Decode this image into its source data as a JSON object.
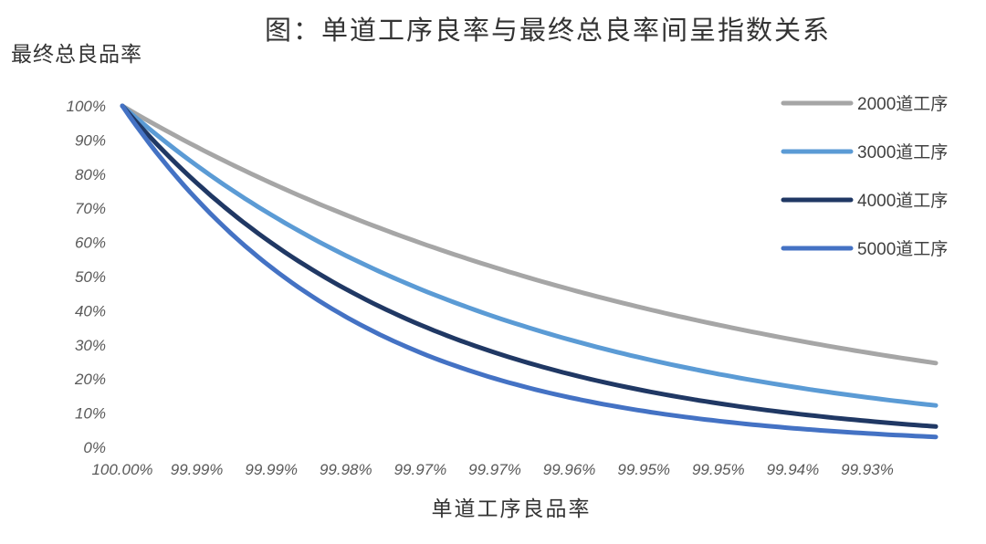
{
  "chart_data": {
    "type": "line",
    "title": "图：单道工序良率与最终总良率间呈指数关系",
    "xlabel": "单道工序良品率",
    "ylabel": "最终总良品率",
    "x_tick_labels": [
      "100.00%",
      "99.99%",
      "99.99%",
      "99.98%",
      "99.97%",
      "99.97%",
      "99.96%",
      "99.95%",
      "99.95%",
      "99.94%",
      "99.93%"
    ],
    "y_tick_labels": [
      "0%",
      "10%",
      "20%",
      "30%",
      "40%",
      "50%",
      "60%",
      "70%",
      "80%",
      "90%",
      "100%"
    ],
    "ylim": [
      0,
      1
    ],
    "x_range_pct": [
      100.0,
      99.93
    ],
    "legend_position": "top-right",
    "grid": false,
    "series": [
      {
        "name": "2000道工序",
        "steps": 2000,
        "color": "#a6a6a6"
      },
      {
        "name": "3000道工序",
        "steps": 3000,
        "color": "#5b9bd5"
      },
      {
        "name": "4000道工序",
        "steps": 4000,
        "color": "#203864"
      },
      {
        "name": "5000道工序",
        "steps": 5000,
        "color": "#4472c4"
      }
    ]
  }
}
